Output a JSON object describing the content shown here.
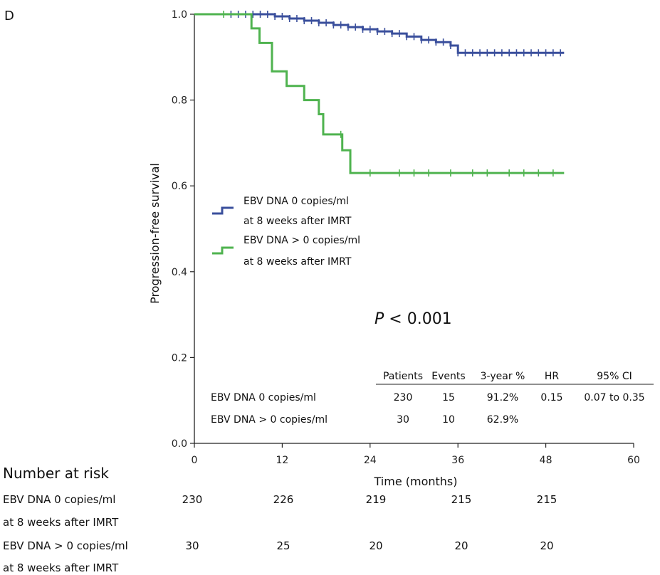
{
  "panel_label": "D",
  "p_value": {
    "italic": "P",
    "rest": " < 0.001"
  },
  "chart_data": {
    "type": "line",
    "xlabel": "Time (months)",
    "ylabel": "Progression-free survival",
    "xlim": [
      0,
      60
    ],
    "ylim": [
      0,
      1.0
    ],
    "xticks": [
      0,
      12,
      24,
      36,
      48,
      60
    ],
    "yticks": [
      0.0,
      0.2,
      0.4,
      0.6,
      0.8,
      1.0
    ],
    "xtick_labels": [
      "0",
      "12",
      "24",
      "36",
      "48",
      "60"
    ],
    "ytick_labels": [
      "0.0",
      "0.2",
      "0.4",
      "0.6",
      "0.8",
      "1.0"
    ],
    "grid": false,
    "legend_position": "middle-left",
    "series": [
      {
        "name_line1": "EBV DNA 0 copies/ml",
        "name_line2": "at 8 weeks after IMRT",
        "color": "#3a4f9c",
        "x": [
          0,
          11,
          13,
          15,
          17,
          19,
          21,
          23,
          25,
          27,
          29,
          31,
          33,
          35,
          36,
          50.5
        ],
        "y": [
          1.0,
          0.995,
          0.99,
          0.985,
          0.98,
          0.975,
          0.97,
          0.965,
          0.96,
          0.955,
          0.948,
          0.94,
          0.935,
          0.927,
          0.91,
          0.91
        ],
        "censor": [
          5,
          6,
          7,
          8,
          9,
          10,
          11,
          12,
          13,
          14,
          15,
          16,
          17,
          18,
          19,
          20,
          21,
          22,
          23,
          24,
          25,
          26,
          27,
          28,
          29,
          30,
          31,
          32,
          33,
          34,
          35,
          36,
          37,
          38,
          39,
          40,
          41,
          42,
          43,
          44,
          45,
          46,
          47,
          48,
          49,
          50
        ]
      },
      {
        "name_line1": "EBV DNA > 0 copies/ml",
        "name_line2": "at 8 weeks after IMRT",
        "color": "#4fb34f",
        "x": [
          0,
          7.8,
          8.9,
          10.6,
          12.6,
          15.0,
          17.0,
          17.6,
          20.2,
          21.3,
          50.5
        ],
        "y": [
          1.0,
          0.967,
          0.933,
          0.867,
          0.833,
          0.8,
          0.767,
          0.72,
          0.683,
          0.63,
          0.63
        ],
        "censor": [
          4,
          20,
          24,
          28,
          30,
          32,
          35,
          38,
          40,
          43,
          45,
          47,
          49
        ]
      }
    ],
    "stats_table": {
      "headers": [
        "Patients",
        "Events",
        "3-year %",
        "HR",
        "95% CI"
      ],
      "rows": [
        {
          "label": "EBV DNA 0 copies/ml",
          "patients": "230",
          "events": "15",
          "three_year": "91.2%",
          "hr": "0.15",
          "ci": "0.07 to 0.35"
        },
        {
          "label": "EBV DNA > 0 copies/ml",
          "patients": "30",
          "events": "10",
          "three_year": "62.9%",
          "hr": "",
          "ci": ""
        }
      ]
    },
    "risk_table": {
      "title": "Number at risk",
      "rows": [
        {
          "line1": "EBV DNA 0 copies/ml",
          "line2": "at 8 weeks after IMRT",
          "counts": [
            "230",
            "226",
            "219",
            "215",
            "215"
          ]
        },
        {
          "line1": "EBV DNA > 0 copies/ml",
          "line2": "at 8 weeks after IMRT",
          "counts": [
            "30",
            "25",
            "20",
            "20",
            "20"
          ]
        }
      ]
    }
  }
}
